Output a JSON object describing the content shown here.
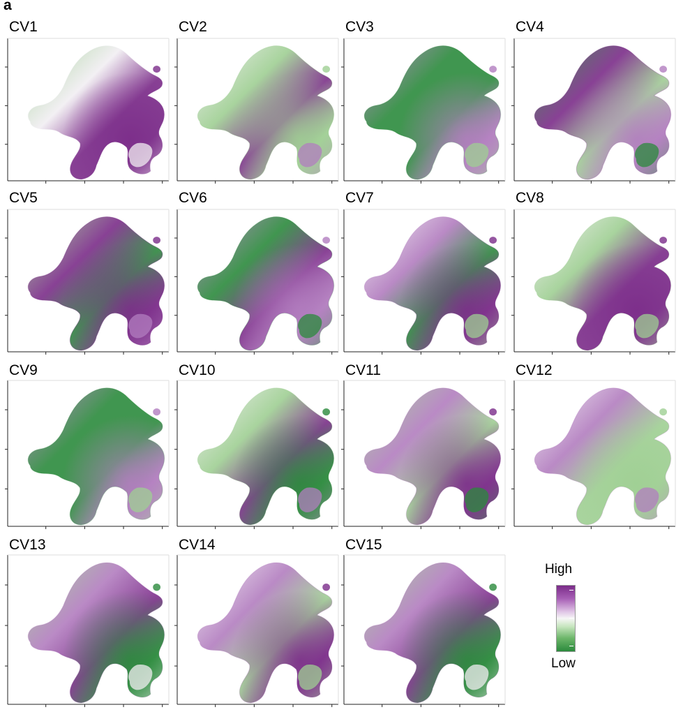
{
  "panel_label": "a",
  "chart_data": {
    "type": "embedding-scatter",
    "panels": [
      {
        "title": "CV1"
      },
      {
        "title": "CV2"
      },
      {
        "title": "CV3"
      },
      {
        "title": "CV4"
      },
      {
        "title": "CV5"
      },
      {
        "title": "CV6"
      },
      {
        "title": "CV7"
      },
      {
        "title": "CV8"
      },
      {
        "title": "CV9"
      },
      {
        "title": "CV10"
      },
      {
        "title": "CV11"
      },
      {
        "title": "CV12"
      },
      {
        "title": "CV13"
      },
      {
        "title": "CV14"
      },
      {
        "title": "CV15"
      }
    ],
    "legend": {
      "high_label": "High",
      "low_label": "Low",
      "colors": {
        "high": "#7b2c89",
        "mid": "#f6f6f6",
        "low": "#2b8a3c"
      }
    }
  }
}
